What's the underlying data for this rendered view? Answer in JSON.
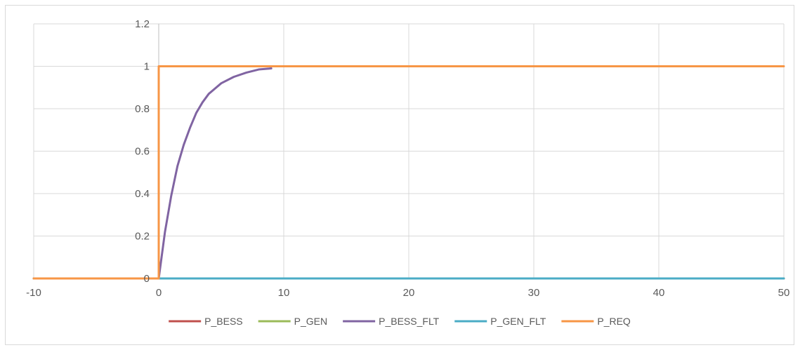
{
  "chart_data": {
    "type": "line",
    "title": "",
    "xlabel": "",
    "ylabel": "",
    "xlim": [
      -10,
      50
    ],
    "ylim": [
      0,
      1.2
    ],
    "x_ticks": [
      -10,
      0,
      10,
      20,
      30,
      40,
      50
    ],
    "y_ticks": [
      0,
      0.2,
      0.4,
      0.6,
      0.8,
      1,
      1.2
    ],
    "x_tick_labels": [
      "-10",
      "0",
      "10",
      "20",
      "30",
      "40",
      "50"
    ],
    "y_tick_labels": [
      "0",
      "0.2",
      "0.4",
      "0.6",
      "0.8",
      "1",
      "1.2"
    ],
    "grid": {
      "vertical": true,
      "horizontal": true
    },
    "legend": {
      "position": "bottom"
    },
    "series": [
      {
        "name": "P_BESS",
        "color": "#c0504d",
        "x": [
          -10,
          50
        ],
        "y": [
          0,
          0
        ]
      },
      {
        "name": "P_GEN",
        "color": "#9bbb59",
        "x": [
          -10,
          50
        ],
        "y": [
          0,
          0
        ]
      },
      {
        "name": "P_BESS_FLT",
        "color": "#8064a2",
        "x": [
          -10,
          0,
          0.5,
          1,
          1.5,
          2,
          2.5,
          3,
          3.5,
          4,
          5,
          6,
          7,
          8,
          9
        ],
        "y": [
          0,
          0,
          0.22,
          0.39,
          0.53,
          0.63,
          0.71,
          0.78,
          0.83,
          0.87,
          0.92,
          0.95,
          0.97,
          0.985,
          0.99
        ]
      },
      {
        "name": "P_GEN_FLT",
        "color": "#4bacc6",
        "x": [
          -10,
          50
        ],
        "y": [
          0,
          0
        ]
      },
      {
        "name": "P_REQ",
        "color": "#f79646",
        "x": [
          -10,
          0,
          0,
          50
        ],
        "y": [
          0,
          0,
          1,
          1
        ]
      }
    ]
  }
}
